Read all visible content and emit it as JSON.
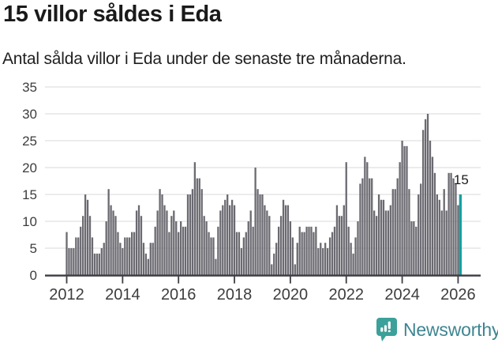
{
  "header": {
    "title": "15 villor såldes i Eda",
    "subtitle": "Antal sålda villor i Eda under de senaste tre månaderna."
  },
  "chart_data": {
    "type": "bar",
    "title": "15 villor såldes i Eda",
    "subtitle": "Antal sålda villor i Eda under de senaste tre månaderna.",
    "frequency": "monthly",
    "x_start_year": 2012,
    "values": [
      8,
      5,
      5,
      5,
      7,
      7,
      9,
      11,
      15,
      14,
      11,
      7,
      4,
      4,
      4,
      5,
      6,
      10,
      16,
      13,
      12,
      11,
      8,
      6,
      5,
      7,
      7,
      7,
      8,
      8,
      12,
      13,
      11,
      6,
      4,
      3,
      6,
      6,
      9,
      12,
      16,
      15,
      13,
      12,
      8,
      11,
      12,
      10,
      8,
      10,
      9,
      9,
      15,
      15,
      16,
      21,
      18,
      18,
      16,
      11,
      10,
      8,
      7,
      7,
      3,
      9,
      12,
      13,
      14,
      15,
      13,
      14,
      13,
      8,
      8,
      5,
      7,
      8,
      10,
      12,
      9,
      20,
      16,
      15,
      15,
      13,
      12,
      11,
      2,
      4,
      6,
      9,
      11,
      14,
      13,
      13,
      10,
      7,
      2,
      6,
      9,
      8,
      8,
      9,
      9,
      9,
      8,
      9,
      5,
      6,
      5,
      6,
      5,
      7,
      8,
      9,
      13,
      11,
      11,
      13,
      21,
      9,
      6,
      4,
      7,
      10,
      17,
      18,
      22,
      21,
      18,
      18,
      12,
      11,
      15,
      14,
      14,
      12,
      12,
      13,
      16,
      16,
      18,
      21,
      25,
      24,
      24,
      16,
      10,
      10,
      9,
      15,
      17,
      27,
      29,
      30,
      25,
      22,
      19,
      15,
      14,
      12,
      16,
      12,
      19,
      19,
      18,
      17,
      13,
      15
    ],
    "highlighted_index": 169,
    "highlighted_value": 15,
    "annotation_label": "15",
    "ylim": [
      0,
      35
    ],
    "yticks": [
      0,
      5,
      10,
      15,
      20,
      25,
      30,
      35
    ],
    "xtick_labels": [
      "2012",
      "2014",
      "2016",
      "2018",
      "2020",
      "2022",
      "2024",
      "2026"
    ],
    "xtick_bar_interval": 24,
    "grid": true,
    "legend_position": "none",
    "colors": {
      "bar": "#6b6a71",
      "highlight": "#13a2a1",
      "grid": "#e0e0e0",
      "axis": "#3e3d43",
      "tick_label": "#3d3d3d",
      "annotation": "#1b1b1b"
    }
  },
  "footer": {
    "brand": "Newsworthy",
    "logo_icon": "newsworthy-speech-bubble-bar-chart-icon",
    "colors": {
      "icon": "#3ba19a",
      "text": "#3e8591"
    }
  }
}
